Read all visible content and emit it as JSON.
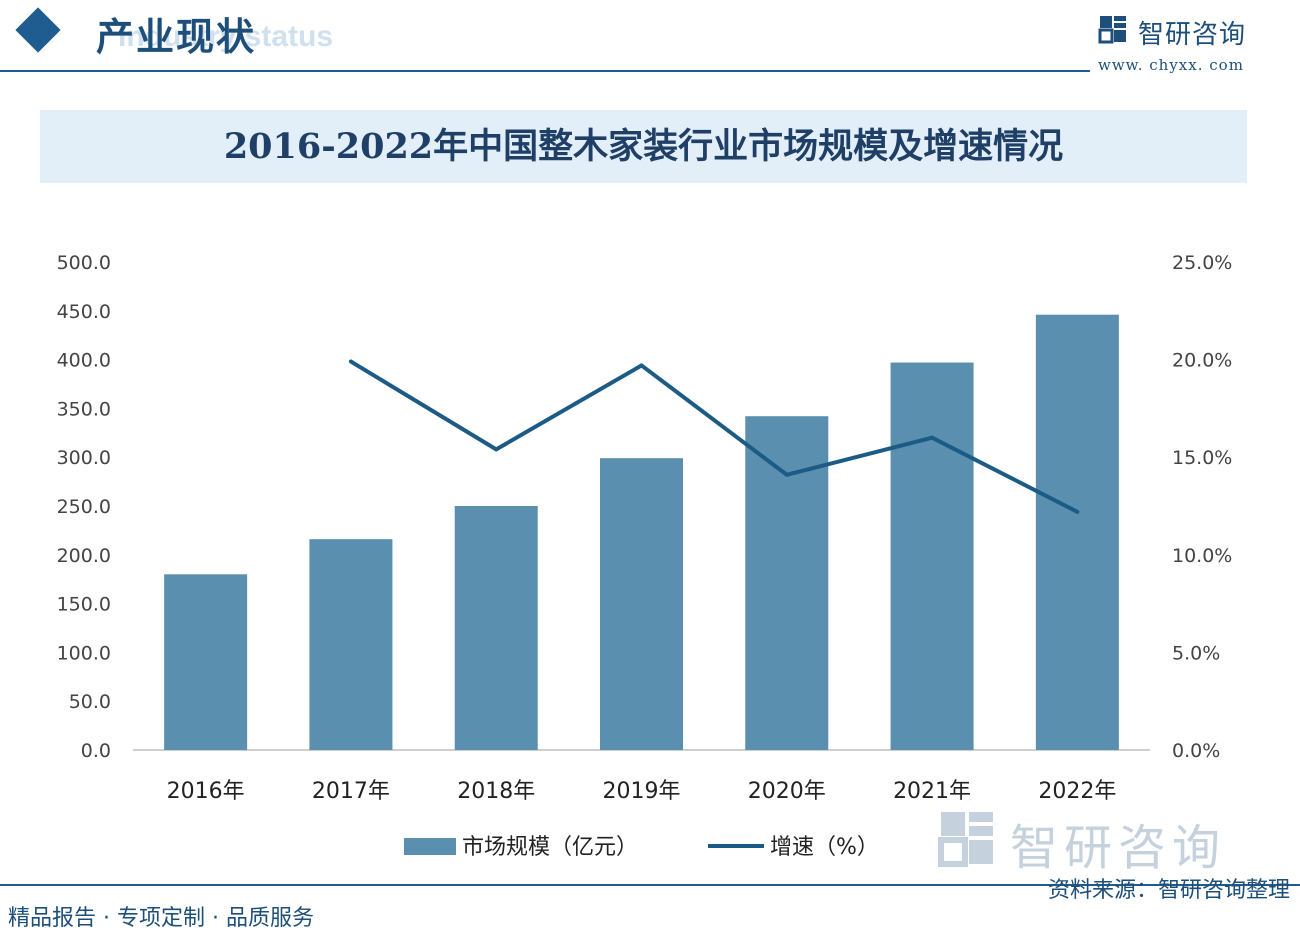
{
  "header": {
    "section_title": "产业现状",
    "section_subtitle": "Industry status",
    "brand_name": "智研咨询",
    "brand_url": "www. chyxx. com"
  },
  "watermark_logo_text": "智研咨询",
  "colors": {
    "bar": "#5a8fb0",
    "line": "#1b5b85",
    "accent": "#1f5c8f",
    "title_band": "#e2eef8"
  },
  "footer": {
    "left": "精品报告 · 专项定制 · 品质服务",
    "right": "资料来源：智研咨询整理"
  },
  "chart_data": {
    "type": "bar",
    "title": "2016-2022年中国整木家装行业市场规模及增速情况",
    "categories": [
      "2016年",
      "2017年",
      "2018年",
      "2019年",
      "2020年",
      "2021年",
      "2022年"
    ],
    "series": [
      {
        "name": "市场规模（亿元）",
        "type": "bar",
        "axis": "left",
        "values": [
          180,
          216,
          250,
          299,
          342,
          397,
          446
        ]
      },
      {
        "name": "增速（%）",
        "type": "line",
        "axis": "right",
        "values": [
          null,
          19.9,
          15.4,
          19.7,
          14.1,
          16.0,
          12.2
        ]
      }
    ],
    "y_left": {
      "ylim": [
        0,
        500
      ],
      "ticks": [
        "0.0",
        "50.0",
        "100.0",
        "150.0",
        "200.0",
        "250.0",
        "300.0",
        "350.0",
        "400.0",
        "450.0",
        "500.0"
      ]
    },
    "y_right": {
      "ylim": [
        0,
        25
      ],
      "ticks": [
        "0.0%",
        "5.0%",
        "10.0%",
        "15.0%",
        "20.0%",
        "25.0%"
      ]
    },
    "grid": false,
    "legend_position": "bottom"
  }
}
